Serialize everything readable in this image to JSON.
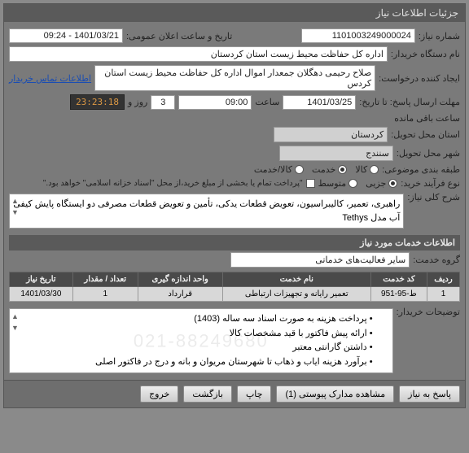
{
  "window": {
    "title": "جزئیات اطلاعات نیاز"
  },
  "fields": {
    "need_no_lbl": "شماره نیاز:",
    "need_no": "1101003249000024",
    "pubdate_lbl": "تاریخ و ساعت اعلان عمومی:",
    "pubdate": "1401/03/21 - 09:24",
    "buyer_lbl": "نام دستگاه خریدار:",
    "buyer": "اداره کل حفاظت محیط زیست استان کردستان",
    "requester_lbl": "ایجاد کننده درخواست:",
    "requester": "صلاح  رحیمی دهگلان جمعدار اموال اداره کل حفاظت محیط زیست استان کردس",
    "contact_link": "اطلاعات تماس خریدار",
    "deadline_lbl": "مهلت ارسال پاسخ: تا تاریخ:",
    "deadline_date": "1401/03/25",
    "hour_lbl": "ساعت",
    "deadline_hour": "09:00",
    "days": "3",
    "days_lbl": "روز و",
    "countdown": "23:23:18",
    "remain_lbl": "ساعت باقی مانده",
    "province_lbl": "استان محل تحویل:",
    "province": "کردستان",
    "city_lbl": "شهر محل تحویل:",
    "city": "سنندج",
    "category_lbl": "طبقه بندی موضوعی:",
    "cat_kala": "کالا",
    "cat_khedmat": "خدمت",
    "cat_both": "کالا/خدمت",
    "buytype_lbl": "نوع فرآیند خرید:",
    "bt_jozi": "جزیی",
    "bt_motevaset": "متوسط",
    "pay_note": "\"پرداخت تمام یا بخشی از مبلغ خرید،از محل \"اسناد خزانه اسلامی\" خواهد بود.\"",
    "desc_lbl": "شرح کلی نیاز:",
    "desc": "راهبری، تعمیر، کالیبراسیون، تعویض قطعات یدکی، تأمین و تعویض قطعات مصرفی دو ایستگاه پایش کیفی آب مدل Tethys"
  },
  "sections": {
    "services_hdr": "اطلاعات خدمات مورد نیاز",
    "group_lbl": "گروه خدمت:",
    "group_val": "سایر فعالیت‌های خدماتی"
  },
  "table": {
    "cols": [
      "ردیف",
      "کد خدمت",
      "نام خدمت",
      "واحد اندازه گیری",
      "تعداد / مقدار",
      "تاریخ نیاز"
    ],
    "rows": [
      [
        "1",
        "ط-95-951",
        "تعمیر رایانه و تجهیزات ارتباطی",
        "قرارداد",
        "1",
        "1401/03/30"
      ]
    ]
  },
  "buyer_notes": {
    "lbl": "توضیحات خریدار:",
    "lines": [
      "پرداخت هزینه به صورت اسناد سه ساله (1403)",
      "ارائه پیش فاکتور با قید مشخصات کالا",
      "داشتن گارانتی معتبر",
      "برآورد هزینه ایاب و ذهاب تا شهرستان مریوان  و بانه و درج در فاکتور اصلی"
    ]
  },
  "watermark": "021-88249680",
  "buttons": {
    "respond": "پاسخ به نیاز",
    "attach": "مشاهده مدارک پیوستی (1)",
    "print": "چاپ",
    "back": "بازگشت",
    "exit": "خروج"
  }
}
